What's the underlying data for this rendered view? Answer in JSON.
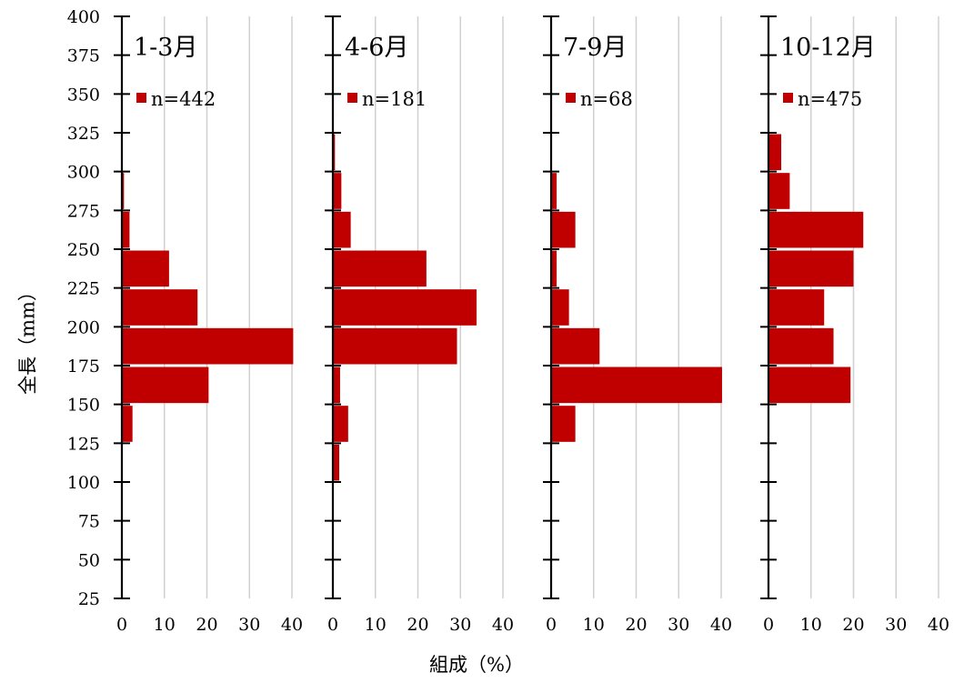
{
  "chart_data": {
    "type": "bar",
    "orientation": "horizontal",
    "ylabel": "全長（mm）",
    "xlabel": "組成（%）",
    "y_ticks": [
      25,
      50,
      75,
      100,
      125,
      150,
      175,
      200,
      225,
      250,
      275,
      300,
      325,
      350,
      375,
      400
    ],
    "y_tick_labels": [
      "25",
      "50",
      "75",
      "100",
      "125",
      "150",
      "175",
      "200",
      "225",
      "250",
      "275",
      "300",
      "325",
      "350",
      "375",
      "400"
    ],
    "ylim": [
      25,
      400
    ],
    "x_ticks": [
      0,
      10,
      20,
      30,
      40
    ],
    "x_tick_labels": [
      "0",
      "10",
      "20",
      "30",
      "40"
    ],
    "xlim": [
      0,
      40
    ],
    "grid": "vertical",
    "bin_width": 25,
    "bins": [
      25,
      50,
      75,
      100,
      125,
      150,
      175,
      200,
      225,
      250,
      275,
      300,
      325,
      350,
      375
    ],
    "color": "#c00000",
    "panels": [
      {
        "title": "1-3月",
        "legend": "n=442",
        "values": [
          0.2,
          0.2,
          0.2,
          0.2,
          2.5,
          20.4,
          40.3,
          17.8,
          11.1,
          1.8,
          0.5,
          0,
          0,
          0,
          0
        ]
      },
      {
        "title": "4-6月",
        "legend": "n=181",
        "values": [
          0,
          0,
          0,
          1.5,
          3.6,
          1.7,
          29.2,
          33.8,
          22,
          4.2,
          2,
          0.5,
          0,
          0,
          0
        ]
      },
      {
        "title": "7-9月",
        "legend": "n=68",
        "values": [
          0,
          0,
          0,
          0,
          5.7,
          40.2,
          11.4,
          4.2,
          1.3,
          5.7,
          1.3,
          0,
          0,
          0,
          0
        ]
      },
      {
        "title": "10-12月",
        "legend": "n=475",
        "values": [
          0,
          0,
          0,
          0,
          0,
          19.3,
          15.3,
          13.1,
          20,
          22.3,
          5,
          3,
          0,
          0,
          0
        ]
      }
    ]
  }
}
